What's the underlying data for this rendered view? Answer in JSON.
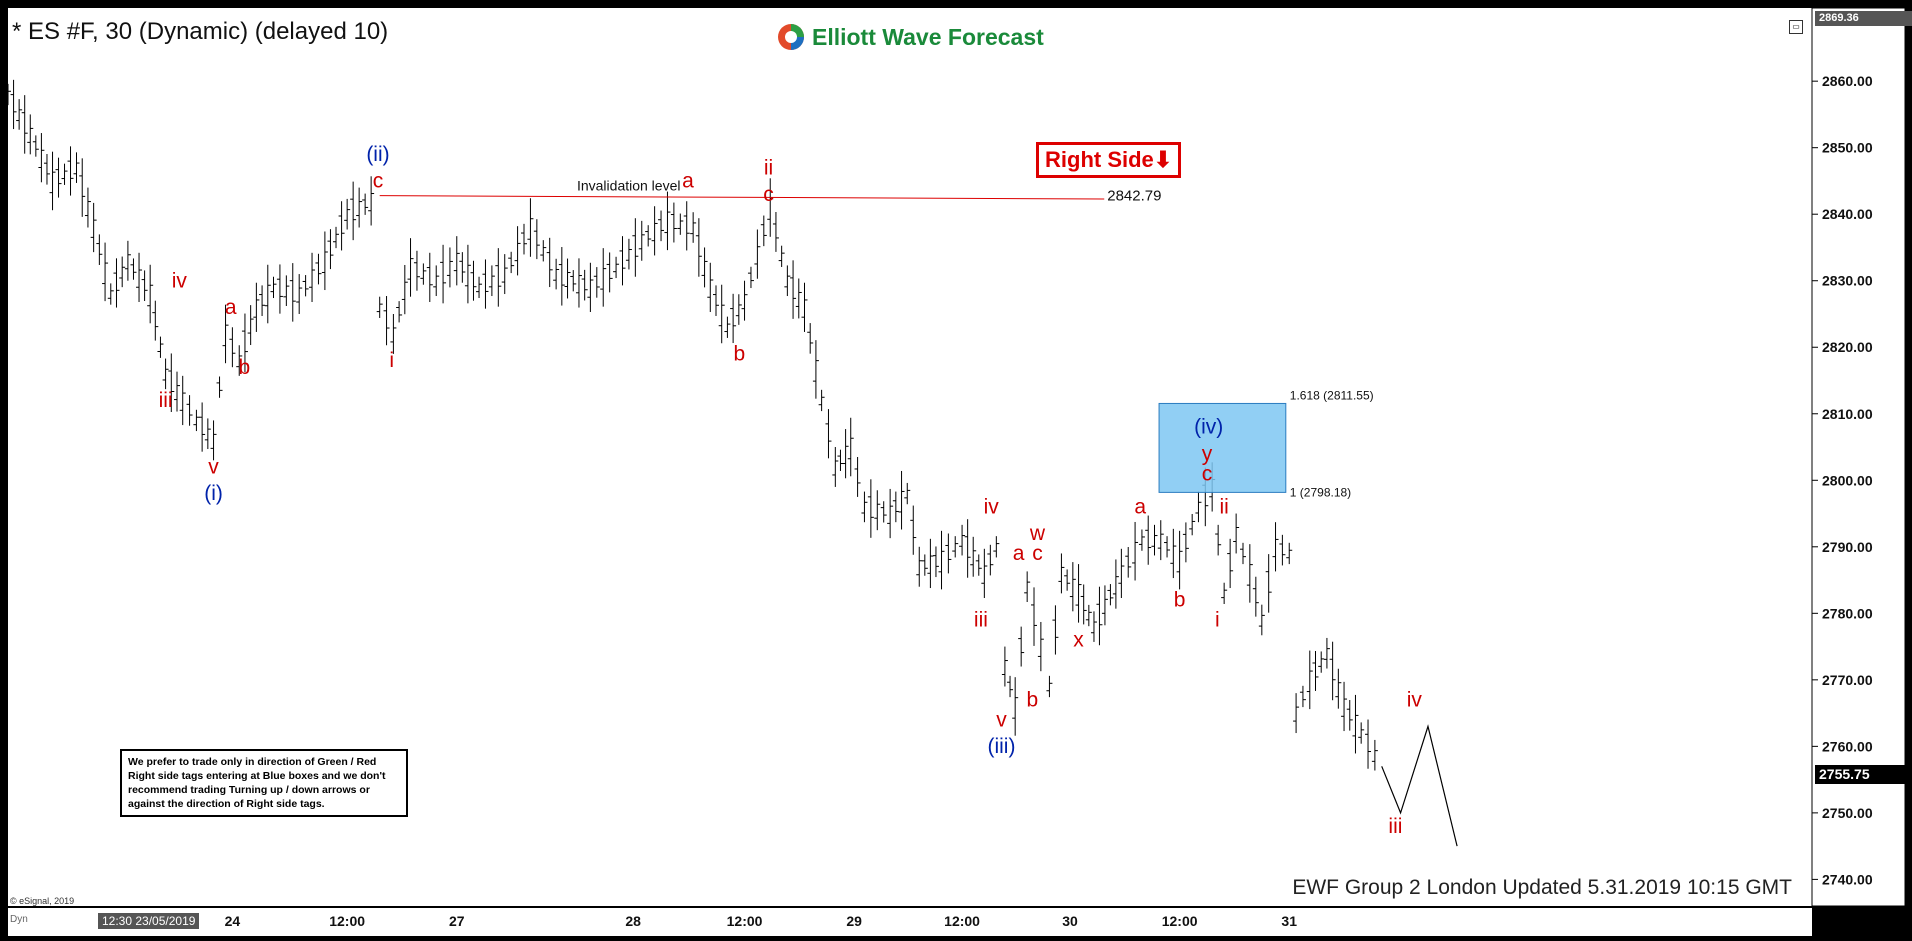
{
  "header": {
    "title": "* ES #F, 30 (Dynamic) (delayed 10)",
    "logo_text": "Elliott Wave Forecast"
  },
  "right_side_tag": "Right Side⬇",
  "note": "We prefer to trade only in direction of Green / Red Right side tags entering at Blue boxes and we don't recommend trading Turning up / down arrows or against the direction of Right side tags.",
  "updated": "EWF Group 2 London Updated 5.31.2019 10:15 GMT",
  "copyright": "© eSignal, 2019",
  "x_axis": {
    "dyn_label": "Dyn",
    "cursor_label": "12:30 23/05/2019"
  },
  "price_labels": {
    "top": "2869.36",
    "last": "2755.75"
  },
  "chart_data": {
    "type": "line",
    "title": "* ES #F, 30 (Dynamic) (delayed 10)",
    "ylim": [
      2736,
      2871
    ],
    "y_ticks": [
      "2740.00",
      "2750.00",
      "2760.00",
      "2770.00",
      "2780.00",
      "2790.00",
      "2800.00",
      "2810.00",
      "2820.00",
      "2830.00",
      "2840.00",
      "2850.00",
      "2860.00"
    ],
    "y_tick_values": [
      2740,
      2750,
      2760,
      2770,
      2780,
      2790,
      2800,
      2810,
      2820,
      2830,
      2840,
      2850,
      2860
    ],
    "x_range": [
      0,
      100
    ],
    "x_ticks": [
      {
        "label": "24",
        "x": 13.1
      },
      {
        "label": "12:00",
        "x": 19.8
      },
      {
        "label": "27",
        "x": 26.2
      },
      {
        "label": "28",
        "x": 36.5
      },
      {
        "label": "12:00",
        "x": 43.0
      },
      {
        "label": "29",
        "x": 49.4
      },
      {
        "label": "12:00",
        "x": 55.7
      },
      {
        "label": "30",
        "x": 62.0
      },
      {
        "label": "12:00",
        "x": 68.4
      },
      {
        "label": "31",
        "x": 74.8
      }
    ],
    "price_path": [
      [
        0.0,
        2858
      ],
      [
        1.3,
        2852
      ],
      [
        2.6,
        2845
      ],
      [
        4.0,
        2847
      ],
      [
        5.0,
        2838
      ],
      [
        6.0,
        2828
      ],
      [
        7.0,
        2833
      ],
      [
        8.3,
        2828
      ],
      [
        9.2,
        2816
      ],
      [
        10.2,
        2812
      ],
      [
        11.0,
        2809
      ],
      [
        12.0,
        2806
      ],
      [
        12.7,
        2822
      ],
      [
        13.5,
        2818
      ],
      [
        14.5,
        2826
      ],
      [
        15.5,
        2829
      ],
      [
        17.0,
        2828
      ],
      [
        18.5,
        2833
      ],
      [
        19.8,
        2840
      ],
      [
        21.2,
        2842
      ],
      [
        21.7,
        2826
      ],
      [
        22.5,
        2822
      ],
      [
        23.5,
        2832
      ],
      [
        25.0,
        2830
      ],
      [
        26.2,
        2833
      ],
      [
        27.5,
        2829
      ],
      [
        29.0,
        2831
      ],
      [
        30.5,
        2838
      ],
      [
        32.0,
        2831
      ],
      [
        34.0,
        2829
      ],
      [
        35.5,
        2832
      ],
      [
        37.0,
        2836
      ],
      [
        38.5,
        2839
      ],
      [
        40.0,
        2838
      ],
      [
        41.0,
        2829
      ],
      [
        42.0,
        2823
      ],
      [
        43.0,
        2827
      ],
      [
        44.5,
        2841
      ],
      [
        45.5,
        2830
      ],
      [
        46.5,
        2826
      ],
      [
        47.5,
        2812
      ],
      [
        48.3,
        2802
      ],
      [
        49.2,
        2805
      ],
      [
        50.0,
        2796
      ],
      [
        51.5,
        2795
      ],
      [
        52.5,
        2798
      ],
      [
        53.2,
        2787
      ],
      [
        54.5,
        2788
      ],
      [
        55.7,
        2791
      ],
      [
        57.0,
        2786
      ],
      [
        57.7,
        2790
      ],
      [
        58.2,
        2772
      ],
      [
        58.8,
        2766
      ],
      [
        59.5,
        2784
      ],
      [
        60.3,
        2775
      ],
      [
        60.8,
        2769
      ],
      [
        61.5,
        2786
      ],
      [
        62.5,
        2783
      ],
      [
        63.4,
        2778
      ],
      [
        65.0,
        2786
      ],
      [
        66.2,
        2791
      ],
      [
        67.3,
        2791
      ],
      [
        68.4,
        2788
      ],
      [
        69.5,
        2796
      ],
      [
        70.3,
        2799
      ],
      [
        71.0,
        2783
      ],
      [
        71.7,
        2792
      ],
      [
        72.5,
        2786
      ],
      [
        73.2,
        2779
      ],
      [
        74.0,
        2790
      ],
      [
        74.8,
        2789
      ],
      [
        75.2,
        2765
      ],
      [
        76.0,
        2770
      ],
      [
        77.0,
        2774
      ],
      [
        78.0,
        2766
      ],
      [
        79.0,
        2762
      ],
      [
        80.2,
        2757
      ]
    ],
    "projection": [
      [
        80.2,
        2757
      ],
      [
        81.3,
        2750
      ],
      [
        82.9,
        2763
      ],
      [
        84.6,
        2745
      ]
    ],
    "invalidation": {
      "value": 2842.79,
      "label": "Invalidation level",
      "value_label": "2842.79",
      "x_start": 21.7,
      "x_end": 64.0
    },
    "blue_box": {
      "x_start": 67.2,
      "x_end": 74.6,
      "y_low": 2798.18,
      "y_high": 2811.55,
      "label_low": "1 (2798.18)",
      "label_high": "1.618 (2811.55)"
    },
    "wave_labels": [
      {
        "text": "iv",
        "x": 10.0,
        "y": 2829,
        "color": "#cc0000"
      },
      {
        "text": "iii",
        "x": 9.2,
        "y": 2811,
        "color": "#cc0000"
      },
      {
        "text": "v",
        "x": 12.0,
        "y": 2801,
        "color": "#cc0000"
      },
      {
        "text": "(i)",
        "x": 12.0,
        "y": 2797,
        "color": "#0022aa"
      },
      {
        "text": "a",
        "x": 13.0,
        "y": 2825,
        "color": "#cc0000"
      },
      {
        "text": "b",
        "x": 13.8,
        "y": 2816,
        "color": "#cc0000"
      },
      {
        "text": "(ii)",
        "x": 21.6,
        "y": 2848,
        "color": "#0022aa"
      },
      {
        "text": "c",
        "x": 21.6,
        "y": 2844,
        "color": "#cc0000"
      },
      {
        "text": "i",
        "x": 22.4,
        "y": 2817,
        "color": "#cc0000"
      },
      {
        "text": "a",
        "x": 39.7,
        "y": 2844,
        "color": "#cc0000"
      },
      {
        "text": "ii",
        "x": 44.4,
        "y": 2846,
        "color": "#cc0000"
      },
      {
        "text": "c",
        "x": 44.4,
        "y": 2842,
        "color": "#cc0000"
      },
      {
        "text": "b",
        "x": 42.7,
        "y": 2818,
        "color": "#cc0000"
      },
      {
        "text": "iv",
        "x": 57.4,
        "y": 2795,
        "color": "#cc0000"
      },
      {
        "text": "iii",
        "x": 56.8,
        "y": 2778,
        "color": "#cc0000"
      },
      {
        "text": "v",
        "x": 58.0,
        "y": 2763,
        "color": "#cc0000"
      },
      {
        "text": "(iii)",
        "x": 58.0,
        "y": 2759,
        "color": "#0022aa"
      },
      {
        "text": "a",
        "x": 59.0,
        "y": 2788,
        "color": "#cc0000"
      },
      {
        "text": "w",
        "x": 60.1,
        "y": 2791,
        "color": "#cc0000"
      },
      {
        "text": "c",
        "x": 60.1,
        "y": 2788,
        "color": "#cc0000"
      },
      {
        "text": "b",
        "x": 59.8,
        "y": 2766,
        "color": "#cc0000"
      },
      {
        "text": "x",
        "x": 62.5,
        "y": 2775,
        "color": "#cc0000"
      },
      {
        "text": "a",
        "x": 66.1,
        "y": 2795,
        "color": "#cc0000"
      },
      {
        "text": "b",
        "x": 68.4,
        "y": 2781,
        "color": "#cc0000"
      },
      {
        "text": "(iv)",
        "x": 70.1,
        "y": 2807,
        "color": "#0022aa"
      },
      {
        "text": "y",
        "x": 70.0,
        "y": 2803,
        "color": "#cc0000"
      },
      {
        "text": "c",
        "x": 70.0,
        "y": 2800,
        "color": "#cc0000"
      },
      {
        "text": "ii",
        "x": 71.0,
        "y": 2795,
        "color": "#cc0000"
      },
      {
        "text": "i",
        "x": 70.6,
        "y": 2778,
        "color": "#cc0000"
      },
      {
        "text": "iv",
        "x": 82.1,
        "y": 2766,
        "color": "#cc0000"
      },
      {
        "text": "iii",
        "x": 81.0,
        "y": 2747,
        "color": "#cc0000"
      }
    ]
  }
}
